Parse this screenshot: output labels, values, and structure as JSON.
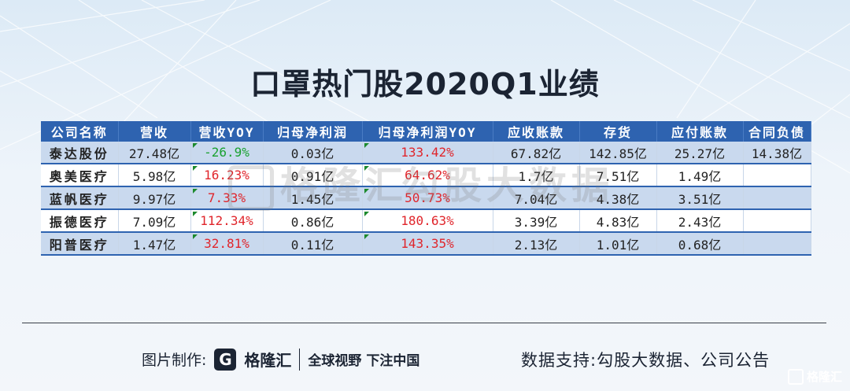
{
  "title": "口罩热门股2020Q1业绩",
  "table": {
    "headers": [
      "公司名称",
      "营收",
      "营收YOY",
      "归母净利润",
      "归母净利润YOY",
      "应收账款",
      "存货",
      "应付账款",
      "合同负债"
    ],
    "rows": [
      [
        "泰达股份",
        "27.48亿",
        "-26.9%",
        "0.03亿",
        "133.42%",
        "67.82亿",
        "142.85亿",
        "25.27亿",
        "14.38亿"
      ],
      [
        "奥美医疗",
        "5.98亿",
        "16.23%",
        "0.91亿",
        "64.62%",
        "1.7亿",
        "7.51亿",
        "1.49亿",
        ""
      ],
      [
        "蓝帆医疗",
        "9.97亿",
        "7.33%",
        "1.45亿",
        "50.73%",
        "7.04亿",
        "4.38亿",
        "3.51亿",
        ""
      ],
      [
        "振德医疗",
        "7.09亿",
        "112.34%",
        "0.86亿",
        "180.63%",
        "3.39亿",
        "4.83亿",
        "2.43亿",
        ""
      ],
      [
        "阳普医疗",
        "1.47亿",
        "32.81%",
        "0.11亿",
        "143.35%",
        "2.13亿",
        "1.01亿",
        "0.68亿",
        ""
      ]
    ]
  },
  "watermark": {
    "left": "格隆汇",
    "right": "勾股大数据"
  },
  "footer": {
    "made_by_label": "图片制作:",
    "logo_letter": "G",
    "logo_name": "格隆汇",
    "slogan": "全球视野 下注中国",
    "source": "数据支持:勾股大数据、公司公告"
  },
  "corner": "格隆汇",
  "colors": {
    "header_bg": "#2e63b0",
    "positive": "#e0252b",
    "negative": "#1aa130"
  }
}
